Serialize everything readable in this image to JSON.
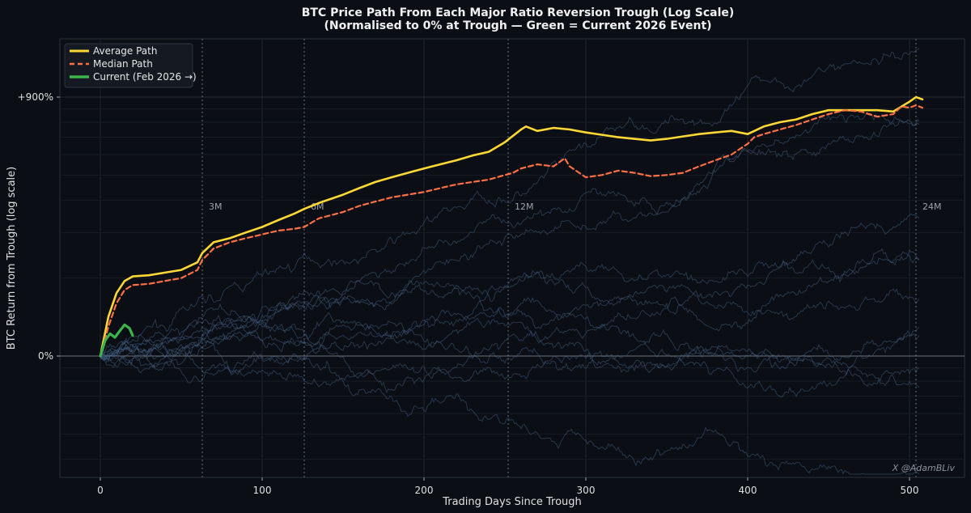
{
  "chart_data": {
    "type": "line",
    "title_line1": "BTC Price Path From Each Major Ratio Reversion Trough (Log Scale)",
    "title_line2": "(Normalised to 0% at Trough — Green = Current 2026 Event)",
    "xlabel": "Trading Days Since Trough",
    "ylabel": "BTC Return from Trough (log scale)",
    "y_scale": "log",
    "xlim": [
      -25,
      530
    ],
    "x_ticks": [
      0,
      100,
      200,
      300,
      400,
      500
    ],
    "y_ticks": [
      {
        "value": "0%",
        "label": "0%"
      },
      {
        "value": "+900%",
        "label": "+900%"
      }
    ],
    "markers": [
      {
        "day": 63,
        "label": "3M"
      },
      {
        "day": 126,
        "label": "6M"
      },
      {
        "day": 252,
        "label": "12M"
      },
      {
        "day": 504,
        "label": "24M"
      }
    ],
    "grid": true,
    "legend_position": "top-left",
    "legend": [
      {
        "label": "Average Path",
        "color": "#fdd835",
        "style": "solid"
      },
      {
        "label": "Median Path",
        "color": "#ff7043",
        "style": "dashed"
      },
      {
        "label": "Current (Feb 2026 →)",
        "color": "#3cb44b",
        "style": "solid"
      }
    ],
    "series": [
      {
        "name": "Average Path",
        "color": "#fdd835",
        "points": [
          [
            0,
            0
          ],
          [
            5,
            42
          ],
          [
            10,
            75
          ],
          [
            15,
            95
          ],
          [
            20,
            103
          ],
          [
            30,
            105
          ],
          [
            40,
            110
          ],
          [
            50,
            115
          ],
          [
            60,
            130
          ],
          [
            63,
            150
          ],
          [
            70,
            175
          ],
          [
            80,
            185
          ],
          [
            90,
            200
          ],
          [
            100,
            215
          ],
          [
            110,
            235
          ],
          [
            120,
            255
          ],
          [
            126,
            270
          ],
          [
            135,
            290
          ],
          [
            150,
            320
          ],
          [
            160,
            345
          ],
          [
            170,
            370
          ],
          [
            180,
            390
          ],
          [
            190,
            410
          ],
          [
            200,
            430
          ],
          [
            210,
            450
          ],
          [
            220,
            470
          ],
          [
            230,
            495
          ],
          [
            240,
            515
          ],
          [
            250,
            570
          ],
          [
            260,
            650
          ],
          [
            263,
            670
          ],
          [
            270,
            640
          ],
          [
            280,
            660
          ],
          [
            290,
            650
          ],
          [
            300,
            630
          ],
          [
            310,
            615
          ],
          [
            320,
            600
          ],
          [
            330,
            590
          ],
          [
            340,
            580
          ],
          [
            350,
            590
          ],
          [
            360,
            605
          ],
          [
            370,
            620
          ],
          [
            380,
            630
          ],
          [
            390,
            640
          ],
          [
            400,
            620
          ],
          [
            410,
            670
          ],
          [
            420,
            700
          ],
          [
            430,
            720
          ],
          [
            440,
            760
          ],
          [
            450,
            790
          ],
          [
            460,
            790
          ],
          [
            470,
            790
          ],
          [
            480,
            790
          ],
          [
            490,
            780
          ],
          [
            500,
            860
          ],
          [
            504,
            900
          ],
          [
            508,
            880
          ]
        ]
      },
      {
        "name": "Median Path",
        "color": "#ff7043",
        "points": [
          [
            0,
            0
          ],
          [
            5,
            30
          ],
          [
            10,
            60
          ],
          [
            15,
            80
          ],
          [
            20,
            88
          ],
          [
            30,
            90
          ],
          [
            40,
            95
          ],
          [
            50,
            100
          ],
          [
            60,
            115
          ],
          [
            63,
            135
          ],
          [
            70,
            160
          ],
          [
            80,
            175
          ],
          [
            90,
            185
          ],
          [
            100,
            195
          ],
          [
            110,
            205
          ],
          [
            120,
            210
          ],
          [
            126,
            215
          ],
          [
            135,
            240
          ],
          [
            150,
            260
          ],
          [
            160,
            280
          ],
          [
            170,
            295
          ],
          [
            180,
            310
          ],
          [
            190,
            320
          ],
          [
            200,
            330
          ],
          [
            210,
            345
          ],
          [
            220,
            360
          ],
          [
            230,
            370
          ],
          [
            240,
            380
          ],
          [
            250,
            400
          ],
          [
            255,
            410
          ],
          [
            260,
            430
          ],
          [
            270,
            450
          ],
          [
            280,
            440
          ],
          [
            287,
            480
          ],
          [
            290,
            440
          ],
          [
            300,
            390
          ],
          [
            310,
            400
          ],
          [
            320,
            420
          ],
          [
            330,
            410
          ],
          [
            340,
            395
          ],
          [
            350,
            400
          ],
          [
            360,
            410
          ],
          [
            370,
            440
          ],
          [
            380,
            470
          ],
          [
            390,
            500
          ],
          [
            400,
            560
          ],
          [
            404,
            600
          ],
          [
            410,
            620
          ],
          [
            420,
            650
          ],
          [
            430,
            680
          ],
          [
            440,
            720
          ],
          [
            450,
            760
          ],
          [
            460,
            790
          ],
          [
            470,
            780
          ],
          [
            480,
            740
          ],
          [
            490,
            760
          ],
          [
            495,
            820
          ],
          [
            500,
            810
          ],
          [
            504,
            830
          ],
          [
            508,
            810
          ]
        ]
      },
      {
        "name": "Current (Feb 2026 →)",
        "color": "#3cb44b",
        "points": [
          [
            0,
            0
          ],
          [
            3,
            15
          ],
          [
            6,
            22
          ],
          [
            9,
            18
          ],
          [
            12,
            25
          ],
          [
            15,
            32
          ],
          [
            18,
            28
          ],
          [
            20,
            20
          ]
        ]
      }
    ],
    "watermark": "X @AdamBLiv"
  }
}
